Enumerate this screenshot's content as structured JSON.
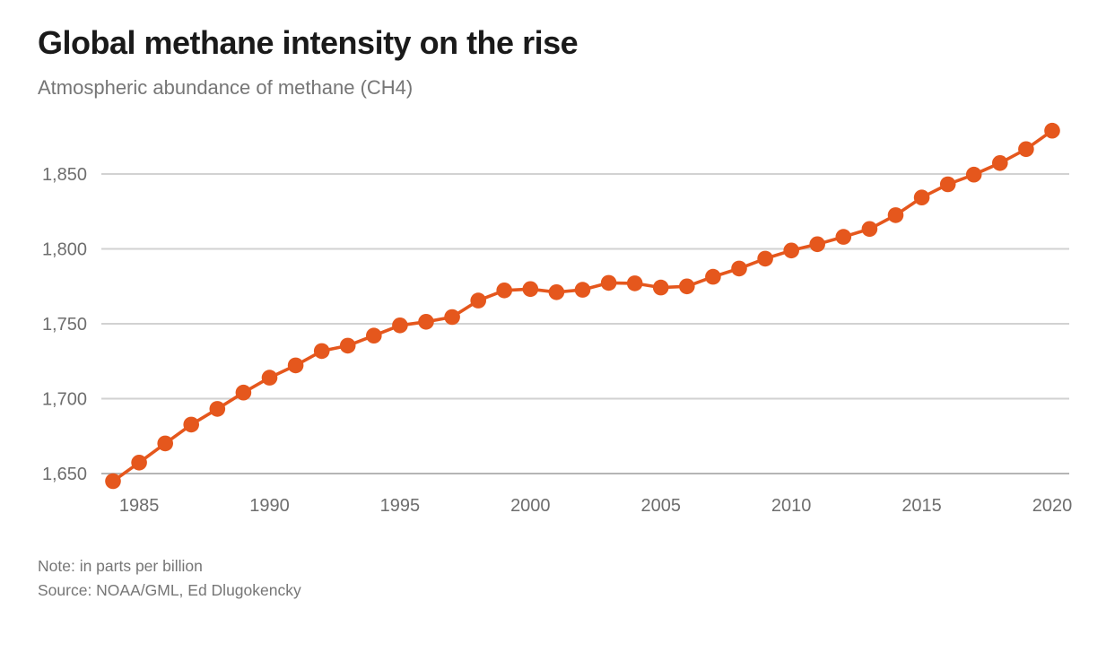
{
  "header": {
    "title": "Global methane intensity on the rise",
    "subtitle": "Atmospheric abundance of methane (CH4)"
  },
  "footer": {
    "note": "Note: in parts per billion",
    "source": "Source: NOAA/GML, Ed Dlugokencky"
  },
  "colors": {
    "accent_orange": "#e5571d",
    "gridline": "#d2d2d2",
    "axis_text": "#6e6e6e",
    "title_text": "#1a1a1a",
    "subtitle_text": "#767676"
  },
  "chart_data": {
    "type": "line",
    "title": "Global methane intensity on the rise",
    "subtitle": "Atmospheric abundance of methane (CH4)",
    "unit": "parts per billion",
    "marker": "circle",
    "grid": "horizontal",
    "legend_position": "none",
    "line_color": "#e5571d",
    "x": [
      1984,
      1985,
      1986,
      1987,
      1988,
      1989,
      1990,
      1991,
      1992,
      1993,
      1994,
      1995,
      1996,
      1997,
      1998,
      1999,
      2000,
      2001,
      2002,
      2003,
      2004,
      2005,
      2006,
      2007,
      2008,
      2009,
      2010,
      2011,
      2012,
      2013,
      2014,
      2015,
      2016,
      2017,
      2018,
      2019,
      2020
    ],
    "values": [
      1644.9,
      1657.3,
      1670.1,
      1682.7,
      1693.2,
      1704.1,
      1714.0,
      1722.2,
      1731.8,
      1735.4,
      1742.1,
      1748.9,
      1751.3,
      1754.5,
      1765.5,
      1772.3,
      1773.2,
      1771.1,
      1772.7,
      1777.3,
      1777.0,
      1774.2,
      1775.0,
      1781.4,
      1786.9,
      1793.5,
      1798.9,
      1803.1,
      1808.0,
      1813.3,
      1822.5,
      1834.3,
      1843.1,
      1849.6,
      1857.3,
      1866.6,
      1878.9
    ],
    "xlim": [
      1984,
      2020
    ],
    "ylim": [
      1640,
      1890
    ],
    "xticks": [
      1985,
      1990,
      1995,
      2000,
      2005,
      2010,
      2015,
      2020
    ],
    "yticks": [
      1650,
      1700,
      1750,
      1800,
      1850
    ],
    "ytick_labels": [
      "1,650",
      "1,700",
      "1,750",
      "1,800",
      "1,850"
    ],
    "xlabel": "",
    "ylabel": ""
  }
}
